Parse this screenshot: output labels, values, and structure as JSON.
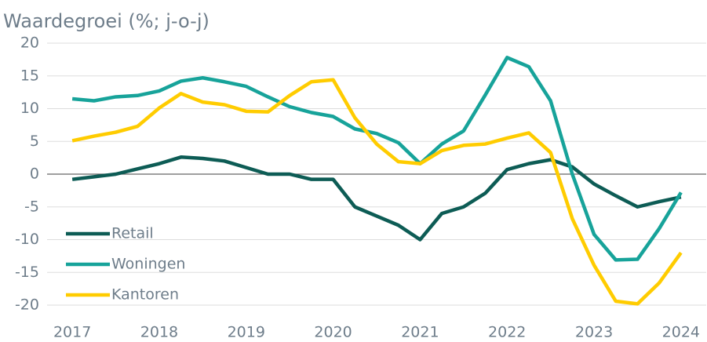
{
  "chart_data": {
    "type": "line",
    "title": "Waardegroei (%; j-o-j)",
    "x": [
      2017,
      2017.25,
      2017.5,
      2017.75,
      2018,
      2018.25,
      2018.5,
      2018.75,
      2019,
      2019.25,
      2019.5,
      2019.75,
      2020,
      2020.25,
      2020.5,
      2020.75,
      2021,
      2021.25,
      2021.5,
      2021.75,
      2022,
      2022.25,
      2022.5,
      2022.75,
      2023,
      2023.25,
      2023.5,
      2023.75,
      2024
    ],
    "series": [
      {
        "name": "Retail",
        "color": "#0d5c55",
        "values": [
          -0.8,
          -0.4,
          0,
          0.8,
          1.6,
          2.6,
          2.4,
          2,
          1,
          0,
          0,
          -0.8,
          -0.8,
          -5,
          -6.4,
          -7.8,
          -10,
          -6,
          -5,
          -2.9,
          0.7,
          1.6,
          2.2,
          1.1,
          -1.5,
          -3.3,
          -5,
          -4.2,
          -3.5
        ]
      },
      {
        "name": "Woningen",
        "color": "#17a39a",
        "values": [
          11.5,
          11.2,
          11.8,
          12,
          12.7,
          14.2,
          14.7,
          14.1,
          13.4,
          11.8,
          10.3,
          9.4,
          8.8,
          6.9,
          6.2,
          4.8,
          1.6,
          4.6,
          6.6,
          12.1,
          17.8,
          16.4,
          11.2,
          0,
          -9.2,
          -13.1,
          -13,
          -8.3,
          -2.8
        ]
      },
      {
        "name": "Kantoren",
        "color": "#ffcc00",
        "values": [
          5.1,
          5.8,
          6.4,
          7.3,
          10.1,
          12.3,
          11,
          10.6,
          9.6,
          9.5,
          12,
          14.1,
          14.4,
          8.6,
          4.6,
          1.9,
          1.6,
          3.6,
          4.4,
          4.6,
          5.5,
          6.3,
          3.3,
          -6.8,
          -13.9,
          -19.4,
          -19.8,
          -16.6,
          -12
        ]
      }
    ],
    "xlim": [
      2016.71,
      2024.29
    ],
    "xticks": [
      2017,
      2018,
      2019,
      2020,
      2021,
      2022,
      2023,
      2024
    ],
    "ylim": [
      -20,
      20
    ],
    "yticks": [
      -20,
      -15,
      -10,
      -5,
      0,
      5,
      10,
      15,
      20
    ],
    "grid": true,
    "legend": "lower left"
  }
}
